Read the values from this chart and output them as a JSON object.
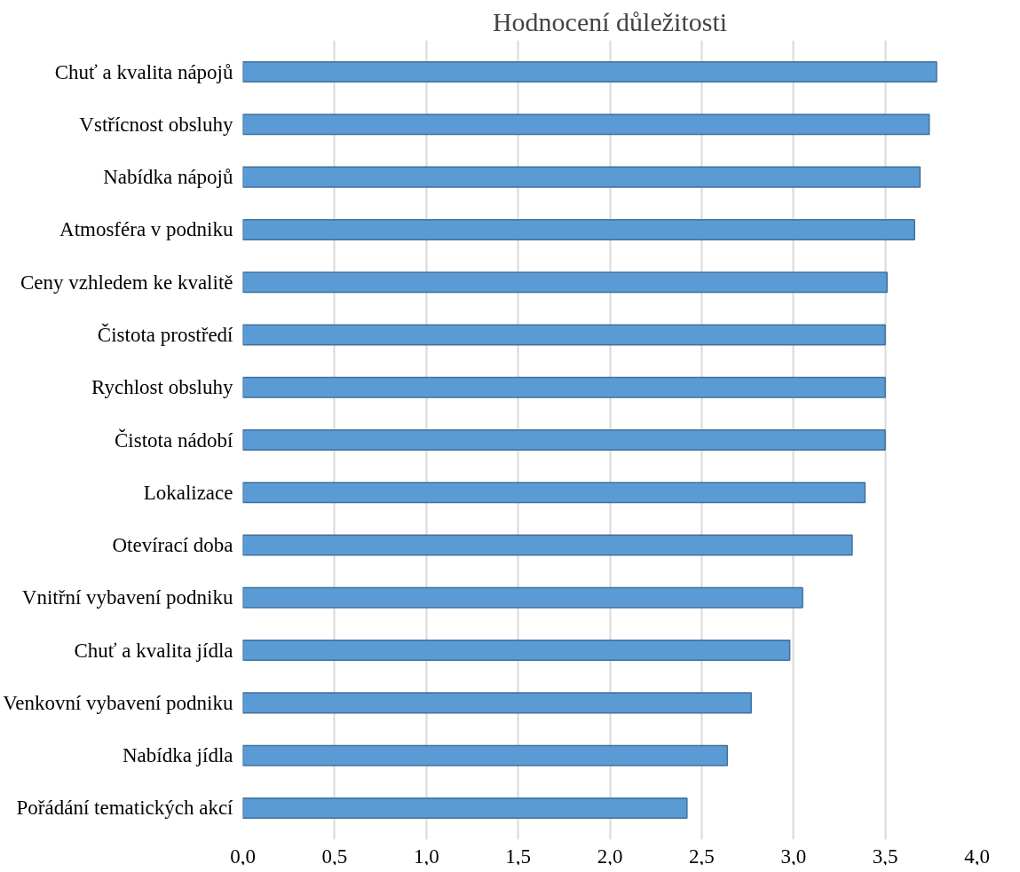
{
  "chart_data": {
    "type": "bar",
    "orientation": "horizontal",
    "title": "Hodnocení důležitosti",
    "categories": [
      "Chuť a kvalita nápojů",
      "Vstřícnost obsluhy",
      "Nabídka nápojů",
      "Atmosféra v podniku",
      "Ceny vzhledem ke kvalitě",
      "Čistota prostředí",
      "Rychlost obsluhy",
      "Čistota nádobí",
      "Lokalizace",
      "Otevírací doba",
      "Vnitřní vybavení podniku",
      "Chuť a kvalita jídla",
      "Venkovní vybavení podniku",
      "Nabídka jídla",
      "Pořádání tematických akcí"
    ],
    "values": [
      3.78,
      3.74,
      3.69,
      3.66,
      3.51,
      3.5,
      3.5,
      3.5,
      3.39,
      3.32,
      3.05,
      2.98,
      2.77,
      2.64,
      2.42
    ],
    "color": "#5b9bd5",
    "xlim": [
      0,
      4
    ],
    "xticks": [
      {
        "value": 0,
        "label": "0,0"
      },
      {
        "value": 0.5,
        "label": "0,5"
      },
      {
        "value": 1,
        "label": "1,0"
      },
      {
        "value": 1.5,
        "label": "1,5"
      },
      {
        "value": 2,
        "label": "2,0"
      },
      {
        "value": 2.5,
        "label": "2,5"
      },
      {
        "value": 3,
        "label": "3,0"
      },
      {
        "value": 3.5,
        "label": "3,5"
      },
      {
        "value": 4,
        "label": "4,0"
      }
    ],
    "grid": "x"
  }
}
